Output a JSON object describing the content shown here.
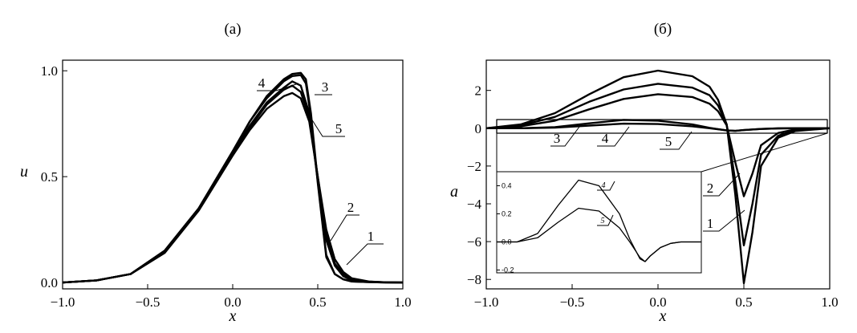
{
  "chart_data": [
    {
      "type": "line",
      "title": "(а)",
      "xlabel": "x",
      "ylabel": "u",
      "xlim": [
        -1.0,
        1.0
      ],
      "ylim": [
        -0.03,
        1.05
      ],
      "xticks": [
        "−1.0",
        "−0.5",
        "0.0",
        "0.5",
        "1.0"
      ],
      "yticks": [
        "0.0",
        "0.5",
        "1.0"
      ],
      "series": [
        {
          "name": "1",
          "x": [
            -1.0,
            -0.8,
            -0.6,
            -0.4,
            -0.2,
            0.0,
            0.1,
            0.2,
            0.3,
            0.35,
            0.4,
            0.45,
            0.5,
            0.55,
            0.6,
            0.65,
            0.7,
            0.8,
            0.9,
            1.0
          ],
          "y": [
            0.0,
            0.01,
            0.04,
            0.14,
            0.34,
            0.6,
            0.73,
            0.84,
            0.91,
            0.93,
            0.9,
            0.78,
            0.5,
            0.25,
            0.11,
            0.05,
            0.02,
            0.005,
            0.001,
            0.0
          ]
        },
        {
          "name": "2",
          "x": [
            -1.0,
            -0.8,
            -0.6,
            -0.4,
            -0.2,
            0.0,
            0.1,
            0.2,
            0.3,
            0.35,
            0.4,
            0.45,
            0.5,
            0.55,
            0.6,
            0.65,
            0.7,
            0.8,
            0.9,
            1.0
          ],
          "y": [
            0.0,
            0.01,
            0.04,
            0.15,
            0.35,
            0.61,
            0.74,
            0.85,
            0.92,
            0.95,
            0.93,
            0.8,
            0.48,
            0.2,
            0.08,
            0.03,
            0.01,
            0.003,
            0.001,
            0.0
          ]
        },
        {
          "name": "3",
          "x": [
            -1.0,
            -0.8,
            -0.6,
            -0.4,
            -0.2,
            0.0,
            0.1,
            0.2,
            0.3,
            0.35,
            0.4,
            0.43,
            0.46,
            0.5,
            0.55,
            0.6,
            0.65,
            0.7,
            0.8,
            0.9,
            1.0
          ],
          "y": [
            0.0,
            0.01,
            0.04,
            0.15,
            0.35,
            0.62,
            0.76,
            0.88,
            0.96,
            0.985,
            0.99,
            0.96,
            0.8,
            0.48,
            0.13,
            0.04,
            0.015,
            0.005,
            0.002,
            0.0,
            0.0
          ]
        },
        {
          "name": "4",
          "x": [
            -1.0,
            -0.8,
            -0.6,
            -0.4,
            -0.2,
            0.0,
            0.1,
            0.2,
            0.3,
            0.35,
            0.4,
            0.43,
            0.46,
            0.5,
            0.55,
            0.6,
            0.65,
            0.7,
            0.8,
            0.9,
            1.0
          ],
          "y": [
            0.0,
            0.01,
            0.04,
            0.15,
            0.35,
            0.62,
            0.76,
            0.87,
            0.95,
            0.975,
            0.98,
            0.94,
            0.78,
            0.47,
            0.12,
            0.04,
            0.015,
            0.005,
            0.002,
            0.0,
            0.0
          ]
        },
        {
          "name": "5",
          "x": [
            -1.0,
            -0.8,
            -0.6,
            -0.4,
            -0.2,
            0.0,
            0.1,
            0.2,
            0.3,
            0.35,
            0.4,
            0.45,
            0.5,
            0.55,
            0.6,
            0.65,
            0.7,
            0.8,
            0.9,
            1.0
          ],
          "y": [
            0.0,
            0.01,
            0.04,
            0.14,
            0.34,
            0.6,
            0.72,
            0.82,
            0.88,
            0.895,
            0.87,
            0.76,
            0.5,
            0.22,
            0.09,
            0.04,
            0.015,
            0.004,
            0.001,
            0.0
          ]
        }
      ]
    },
    {
      "type": "line",
      "title": "(б)",
      "xlabel": "x",
      "ylabel": "a",
      "xlim": [
        -1.0,
        1.0
      ],
      "ylim": [
        -8.5,
        3.6
      ],
      "xticks": [
        "−1.0",
        "−0.5",
        "0.0",
        "0.5",
        "1.0"
      ],
      "yticks": [
        "2",
        "0",
        "−2",
        "−4",
        "−6",
        "−8"
      ],
      "series": [
        {
          "name": "1",
          "x": [
            -1.0,
            -0.8,
            -0.6,
            -0.4,
            -0.2,
            0.0,
            0.2,
            0.3,
            0.35,
            0.4,
            0.45,
            0.5,
            0.55,
            0.6,
            0.7,
            0.8,
            1.0
          ],
          "y": [
            0.0,
            0.2,
            0.8,
            1.8,
            2.7,
            3.05,
            2.75,
            2.2,
            1.5,
            0.2,
            -3.5,
            -8.2,
            -5.5,
            -2.0,
            -0.5,
            -0.15,
            0.0
          ]
        },
        {
          "name": "2",
          "x": [
            -1.0,
            -0.8,
            -0.6,
            -0.4,
            -0.2,
            0.0,
            0.2,
            0.3,
            0.35,
            0.4,
            0.45,
            0.5,
            0.55,
            0.6,
            0.7,
            0.8,
            1.0
          ],
          "y": [
            0.0,
            0.15,
            0.6,
            1.4,
            2.05,
            2.35,
            2.15,
            1.75,
            1.2,
            0.2,
            -2.8,
            -6.2,
            -4.0,
            -1.4,
            -0.4,
            -0.1,
            0.0
          ]
        },
        {
          "name": "3",
          "x": [
            -1.0,
            -0.8,
            -0.6,
            -0.4,
            -0.2,
            0.0,
            0.2,
            0.3,
            0.35,
            0.4,
            0.45,
            0.5,
            0.55,
            0.6,
            0.7,
            0.8,
            1.0
          ],
          "y": [
            0.0,
            0.1,
            0.4,
            1.0,
            1.55,
            1.8,
            1.65,
            1.3,
            0.9,
            0.15,
            -1.8,
            -3.6,
            -2.4,
            -0.9,
            -0.25,
            -0.06,
            0.0
          ]
        },
        {
          "name": "4",
          "x": [
            -1.0,
            -0.8,
            -0.6,
            -0.4,
            -0.2,
            0.0,
            0.2,
            0.3,
            0.4,
            0.45,
            0.5,
            0.6,
            0.7,
            0.8,
            1.0
          ],
          "y": [
            0.0,
            0.0,
            0.06,
            0.26,
            0.44,
            0.4,
            0.2,
            0.02,
            -0.12,
            -0.14,
            -0.1,
            -0.04,
            -0.01,
            0.0,
            0.0
          ]
        },
        {
          "name": "5",
          "x": [
            -1.0,
            -0.8,
            -0.6,
            -0.4,
            -0.2,
            0.0,
            0.2,
            0.3,
            0.4,
            0.45,
            0.5,
            0.6,
            0.7,
            0.8,
            1.0
          ],
          "y": [
            0.0,
            0.0,
            0.03,
            0.14,
            0.24,
            0.22,
            0.1,
            0.0,
            -0.11,
            -0.14,
            -0.1,
            -0.04,
            -0.01,
            0.0,
            0.0
          ]
        }
      ],
      "inset": {
        "ylim": [
          -0.22,
          0.5
        ],
        "yticks": [
          "0.4",
          "0.2",
          "0.0",
          "-0.2"
        ],
        "series_names": [
          "4",
          "5"
        ]
      }
    }
  ]
}
